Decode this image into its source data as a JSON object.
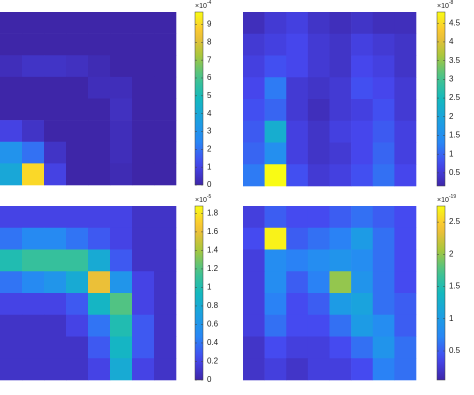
{
  "chart_data": [
    {
      "type": "heatmap",
      "colormap": "parula",
      "zlim": [
        0,
        9.7
      ],
      "zticks": [
        0,
        1,
        2,
        3,
        4,
        5,
        6,
        7,
        8,
        9
      ],
      "multiplier": "×10",
      "exponent": "-4",
      "z": [
        [
          0,
          0,
          0,
          0,
          0,
          0,
          0,
          0
        ],
        [
          0,
          0,
          0,
          0,
          0,
          0,
          0,
          0
        ],
        [
          0.3,
          0.5,
          0.5,
          0.4,
          0.2,
          0,
          0,
          0
        ],
        [
          0,
          0,
          0,
          0,
          0.3,
          0.3,
          0,
          0
        ],
        [
          0,
          0,
          0,
          0,
          0,
          0.4,
          0,
          0
        ],
        [
          1,
          0.5,
          0,
          0,
          0,
          0.3,
          0,
          0
        ],
        [
          3,
          2,
          0.5,
          0,
          0,
          0.3,
          0,
          0
        ],
        [
          4,
          9,
          1,
          0,
          0,
          0.2,
          0,
          0
        ]
      ]
    },
    {
      "type": "heatmap",
      "colormap": "parula",
      "zlim": [
        0.15,
        4.8
      ],
      "zticks": [
        0.5,
        1,
        1.5,
        2,
        2.5,
        3,
        3.5,
        4,
        4.5
      ],
      "multiplier": "×10",
      "exponent": "-8",
      "z": [
        [
          0.3,
          0.5,
          0.6,
          0.4,
          0.3,
          0.4,
          0.3,
          0.3
        ],
        [
          0.5,
          0.6,
          0.7,
          0.5,
          0.4,
          0.6,
          0.5,
          0.4
        ],
        [
          0.6,
          0.8,
          0.7,
          0.5,
          0.4,
          0.7,
          0.6,
          0.4
        ],
        [
          0.7,
          1.2,
          0.5,
          0.4,
          0.5,
          0.8,
          0.7,
          0.5
        ],
        [
          0.8,
          1.0,
          0.5,
          0.3,
          0.5,
          0.6,
          0.8,
          0.5
        ],
        [
          0.9,
          2.2,
          0.6,
          0.4,
          0.6,
          0.7,
          0.9,
          0.6
        ],
        [
          1.0,
          1.5,
          0.6,
          0.4,
          0.5,
          0.7,
          1.0,
          0.6
        ],
        [
          1.2,
          4.8,
          0.8,
          0.5,
          0.6,
          0.8,
          1.1,
          0.7
        ]
      ]
    },
    {
      "type": "heatmap",
      "colormap": "parula",
      "zlim": [
        0,
        1.88
      ],
      "zticks": [
        0,
        0.2,
        0.4,
        0.6,
        0.8,
        1,
        1.2,
        1.4,
        1.6,
        1.8
      ],
      "multiplier": "×10",
      "exponent": "-5",
      "z": [
        [
          0.2,
          0.2,
          0.2,
          0.2,
          0.2,
          0.2,
          0.1,
          0.1
        ],
        [
          0.4,
          0.5,
          0.5,
          0.4,
          0.3,
          0.2,
          0.1,
          0.1
        ],
        [
          1.0,
          1.1,
          1.1,
          1.1,
          0.8,
          0.3,
          0.1,
          0.1
        ],
        [
          0.4,
          0.5,
          0.6,
          0.8,
          1.6,
          0.6,
          0.2,
          0.1
        ],
        [
          0.2,
          0.2,
          0.2,
          0.3,
          0.9,
          1.2,
          0.2,
          0.1
        ],
        [
          0.1,
          0.1,
          0.1,
          0.2,
          0.4,
          1.0,
          0.3,
          0.1
        ],
        [
          0.1,
          0.1,
          0.1,
          0.1,
          0.3,
          0.9,
          0.3,
          0.1
        ],
        [
          0.1,
          0.1,
          0.1,
          0.1,
          0.2,
          0.8,
          0.2,
          0.1
        ]
      ]
    },
    {
      "type": "heatmap",
      "colormap": "parula",
      "zlim": [
        0.05,
        2.75
      ],
      "zticks": [
        0.5,
        1,
        1.5,
        2,
        2.5
      ],
      "multiplier": "×10",
      "exponent": "-19",
      "z": [
        [
          0.3,
          0.5,
          0.4,
          0.4,
          0.5,
          0.6,
          0.5,
          0.4
        ],
        [
          0.4,
          2.7,
          0.5,
          0.6,
          0.7,
          1.0,
          0.6,
          0.4
        ],
        [
          0.3,
          0.8,
          0.7,
          0.8,
          0.9,
          0.8,
          0.6,
          0.4
        ],
        [
          0.3,
          0.8,
          0.5,
          0.7,
          2.0,
          0.9,
          0.6,
          0.4
        ],
        [
          0.3,
          0.7,
          0.4,
          0.5,
          1.0,
          1.1,
          0.6,
          0.5
        ],
        [
          0.3,
          0.6,
          0.4,
          0.4,
          0.6,
          1.0,
          0.8,
          0.5
        ],
        [
          0.2,
          0.4,
          0.3,
          0.3,
          0.4,
          0.6,
          0.9,
          0.6
        ],
        [
          0.2,
          0.3,
          0.2,
          0.3,
          0.3,
          0.4,
          0.7,
          0.6
        ]
      ]
    }
  ]
}
